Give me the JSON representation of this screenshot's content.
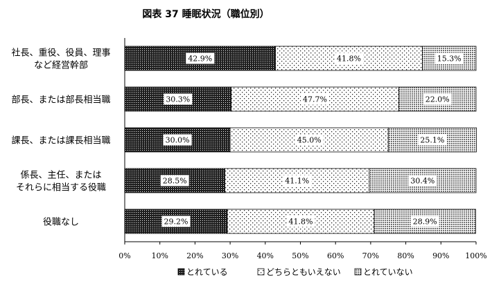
{
  "chart_data": {
    "type": "bar",
    "orientation": "horizontal",
    "stacked": true,
    "title": "図表 37 睡眠状況（職位別）",
    "categories": [
      [
        "社長、重役、役員、理事",
        "など経営幹部"
      ],
      [
        "部長、または部長相当職"
      ],
      [
        "課長、または課長相当職"
      ],
      [
        "係長、主任、または",
        "それらに相当する役職"
      ],
      [
        "役職なし"
      ]
    ],
    "series": [
      {
        "name": "とれている",
        "values": [
          42.9,
          30.3,
          30.0,
          28.5,
          29.2
        ],
        "labels": [
          "42.9%",
          "30.3%",
          "30.0%",
          "28.5%",
          "29.2%"
        ],
        "pattern": "dense-dots"
      },
      {
        "name": "どちらともいえない",
        "values": [
          41.8,
          47.7,
          45.0,
          41.1,
          41.8
        ],
        "labels": [
          "41.8%",
          "47.7%",
          "45.0%",
          "41.1%",
          "41.8%"
        ],
        "pattern": "sparse-dots"
      },
      {
        "name": "とれていない",
        "values": [
          15.3,
          22.0,
          25.1,
          30.4,
          28.9
        ],
        "labels": [
          "15.3%",
          "22.0%",
          "25.1%",
          "30.4%",
          "28.9%"
        ],
        "pattern": "medium-dots"
      }
    ],
    "xlim": [
      0,
      100
    ],
    "xticks": [
      "0%",
      "10%",
      "20%",
      "30%",
      "40%",
      "50%",
      "60%",
      "70%",
      "80%",
      "90%",
      "100%"
    ],
    "grid": false,
    "legend_position": "bottom"
  }
}
